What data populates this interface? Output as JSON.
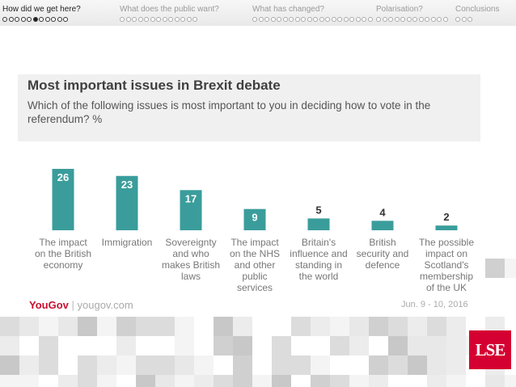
{
  "nav": {
    "sections": [
      {
        "label": "How did we get here?",
        "dot_count": 11,
        "filled_index": 5,
        "active": true
      },
      {
        "label": "What does the public want?",
        "dot_count": 13,
        "filled_index": -1,
        "active": false
      },
      {
        "label": "What has changed?",
        "dot_count": 20,
        "filled_index": -1,
        "active": false
      },
      {
        "label": "Polarisation?",
        "dot_count": 12,
        "filled_index": -1,
        "active": false
      },
      {
        "label": "Conclusions",
        "dot_count": 3,
        "filled_index": -1,
        "active": false
      }
    ]
  },
  "chart_data": {
    "type": "bar",
    "title": "Most important issues in Brexit debate",
    "subtitle": "Which of the following issues is most important to you in deciding how to vote in the referendum? %",
    "categories": [
      [
        "The impact",
        "on the British",
        "economy"
      ],
      [
        "Immigration"
      ],
      [
        "Sovereignty",
        "and who",
        "makes British",
        "laws"
      ],
      [
        "The impact",
        "on the NHS",
        "and other",
        "public",
        "services"
      ],
      [
        "Britain's",
        "influence and",
        "standing in",
        "the world"
      ],
      [
        "British",
        "security and",
        "defence"
      ],
      [
        "The possible",
        "impact on",
        "Scotland's",
        "membership",
        "of the UK"
      ]
    ],
    "values": [
      26,
      23,
      17,
      9,
      5,
      4,
      2
    ],
    "bar_color": "#3a9d9b",
    "ylim": [
      0,
      26
    ],
    "xlabel": "",
    "ylabel": ""
  },
  "source": {
    "brand": "YouGov",
    "url": "yougov.com",
    "date": "Jun. 9 - 10, 2016"
  },
  "lse_logo": "LSE"
}
